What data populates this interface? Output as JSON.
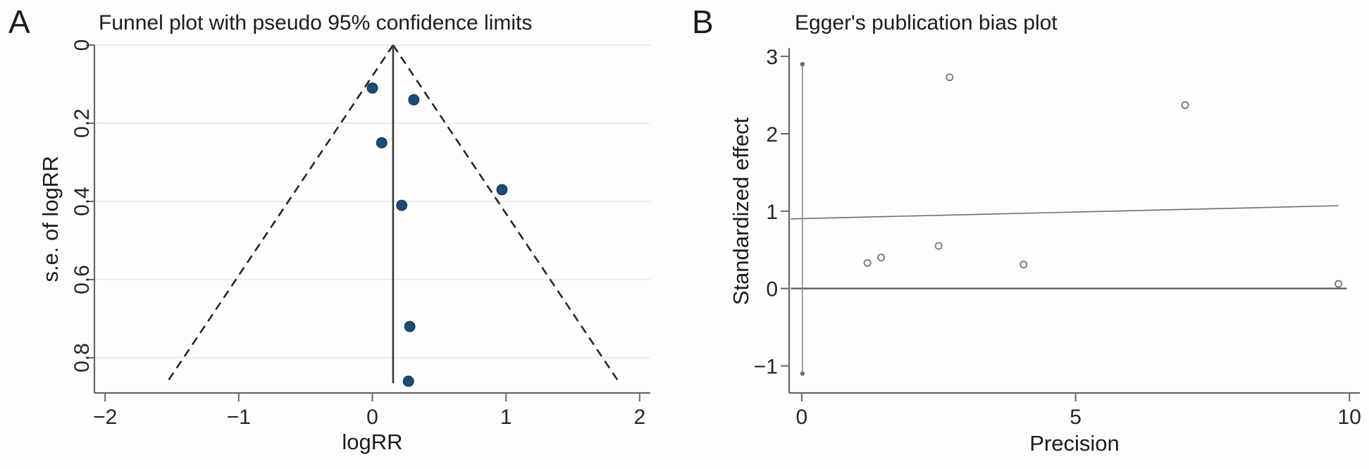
{
  "page": {
    "background": "#fdfdfd"
  },
  "panel_labels": [
    "A",
    "B"
  ],
  "chart_data": [
    {
      "type": "scatter",
      "panel": "A",
      "title": "Funnel plot with pseudo 95% confidence limits",
      "xlabel": "logRR",
      "ylabel": "s.e. of logRR",
      "xlim": [
        -2.08,
        2.08
      ],
      "ylim": [
        0,
        0.89
      ],
      "y_inverted": true,
      "x_ticks": [
        -2,
        -1,
        0,
        1,
        2
      ],
      "x_tick_labels": [
        "−2",
        "−1",
        "0",
        "1",
        "2"
      ],
      "y_ticks": [
        0,
        0.2,
        0.4,
        0.6,
        0.8
      ],
      "y_tick_labels": [
        "0",
        "0.2",
        "0.4",
        "0.6",
        "0.8"
      ],
      "y_tick_label_rotation": -90,
      "gridlines_y": [
        0,
        0.2,
        0.4,
        0.6,
        0.8
      ],
      "grid_color": "#ececec",
      "points_xy": [
        [
          0.0,
          0.11
        ],
        [
          0.31,
          0.14
        ],
        [
          0.07,
          0.25
        ],
        [
          0.97,
          0.37
        ],
        [
          0.22,
          0.41
        ],
        [
          0.28,
          0.72
        ],
        [
          0.27,
          0.86
        ]
      ],
      "marker": "filled-circle",
      "marker_color": "#1d4a78",
      "marker_edge_color": "#143a5e",
      "pooled_center_line": {
        "x": 0.155,
        "se_from": 0,
        "se_to": 0.865,
        "color": "#3a3a3a"
      },
      "confidence_funnel": {
        "style": "dashed",
        "apex_x": 0.155,
        "apex_se": 0,
        "base_se": 0.866,
        "half_width_multiplier": 1.96,
        "color": "#262626"
      },
      "legend": "none"
    },
    {
      "type": "scatter",
      "panel": "B",
      "title": "Egger's publication bias plot",
      "xlabel": "Precision",
      "ylabel": "Standardized effect",
      "xlim": [
        -0.23,
        10.19
      ],
      "ylim": [
        -1.35,
        3.11
      ],
      "y_inverted": false,
      "x_ticks": [
        0,
        5,
        10
      ],
      "x_tick_labels": [
        "0",
        "5",
        "10"
      ],
      "y_ticks": [
        -1,
        0,
        1,
        2,
        3
      ],
      "y_tick_labels": [
        "−1",
        "0",
        "1",
        "2",
        "3"
      ],
      "gridlines_y": [],
      "points_xy": [
        [
          2.7,
          2.73
        ],
        [
          7.0,
          2.37
        ],
        [
          2.5,
          0.55
        ],
        [
          1.2,
          0.33
        ],
        [
          1.45,
          0.4
        ],
        [
          4.05,
          0.31
        ],
        [
          9.8,
          0.06
        ]
      ],
      "marker": "open-circle",
      "marker_color": "#7c7c7c",
      "regression_line": {
        "x1": -0.2,
        "y1": 0.9,
        "x2": 9.8,
        "y2": 1.07,
        "color": "#6e6e6e"
      },
      "zero_line": {
        "y": 0,
        "x1": -0.2,
        "x2": 9.95,
        "color": "#5f5f5f"
      },
      "intercept_ci_segment": {
        "x": 0.013,
        "y_from": -1.1,
        "y_to": 2.9,
        "color": "#8a8a8a",
        "end_dot_color": "#6f6f6f"
      },
      "legend": "none"
    }
  ]
}
